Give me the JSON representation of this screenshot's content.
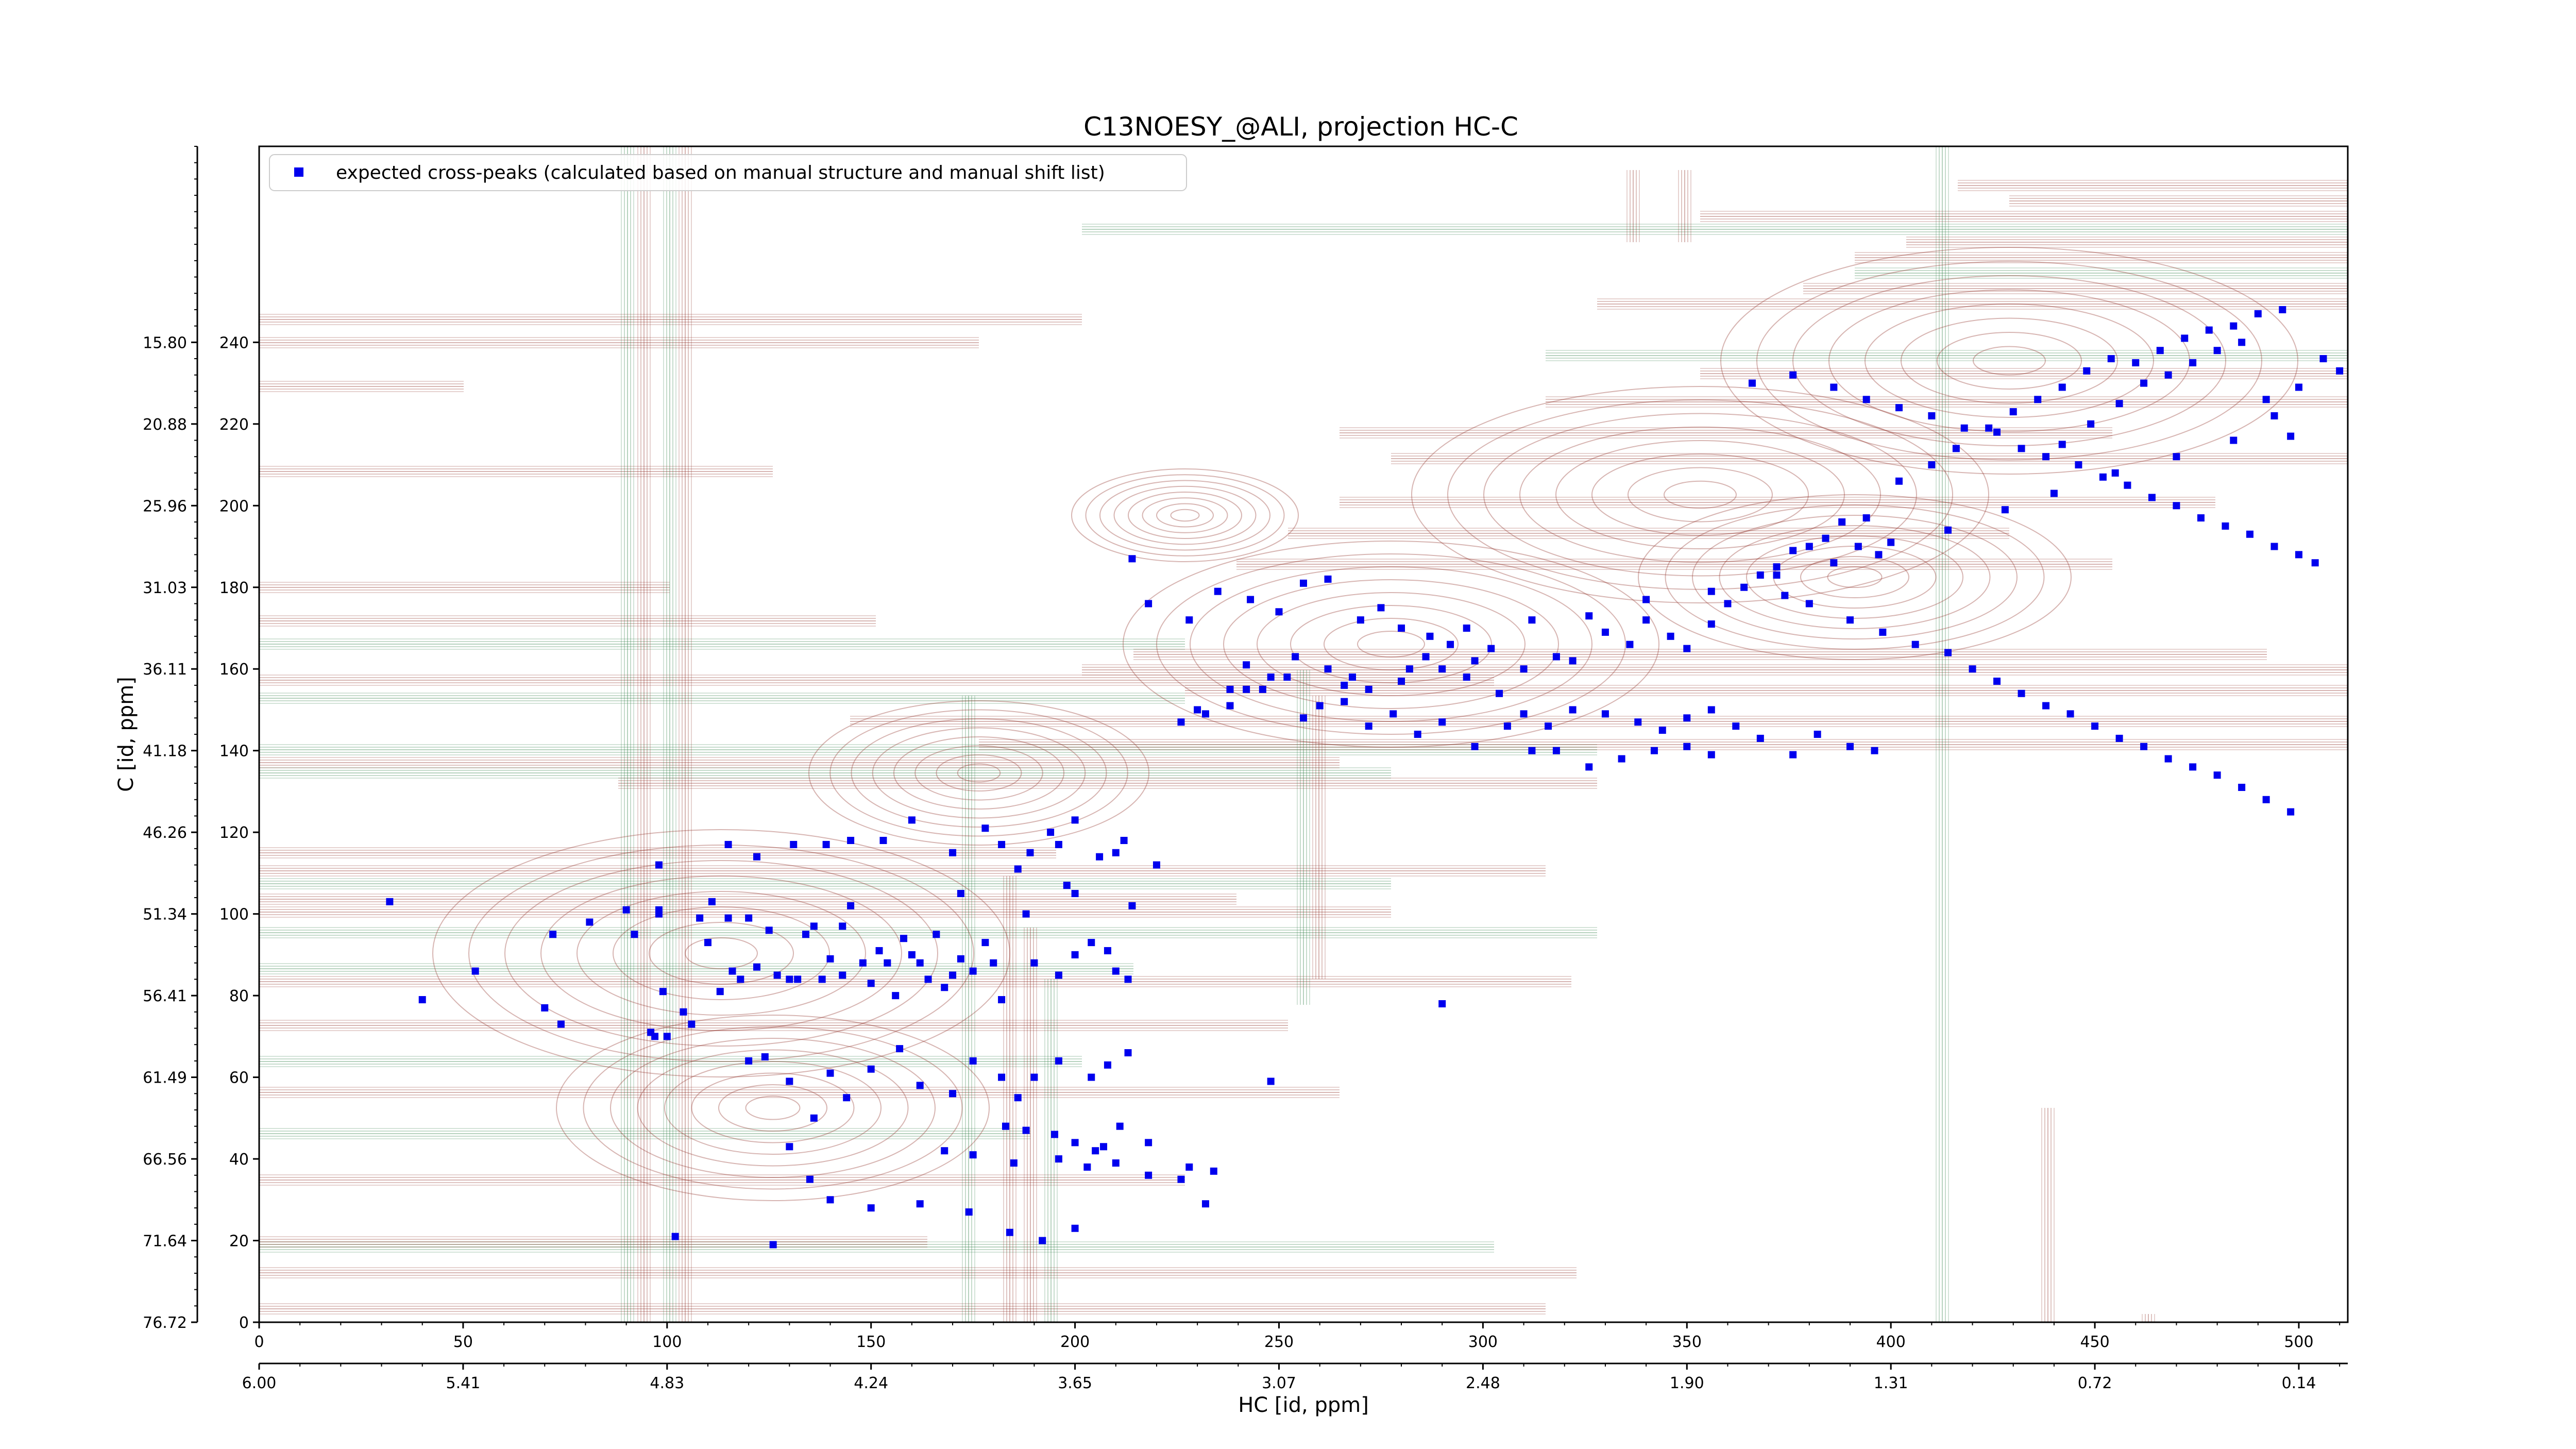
{
  "chart_data": {
    "type": "scatter",
    "title": "C13NOESY_@ALI, projection HC-C",
    "xlabel": "HC [id, ppm]",
    "ylabel": "C [id, ppm]",
    "xlim": [
      0,
      512
    ],
    "ylim": [
      0,
      288
    ],
    "x_ticks_index": [
      "0",
      "50",
      "100",
      "150",
      "200",
      "250",
      "300",
      "350",
      "400",
      "450",
      "500"
    ],
    "x_ticks_ppm": [
      "6.00",
      "5.41",
      "4.83",
      "4.24",
      "3.65",
      "3.07",
      "2.48",
      "1.90",
      "1.31",
      "0.72",
      "0.14"
    ],
    "y_ticks_index": [
      "0",
      "20",
      "40",
      "60",
      "80",
      "100",
      "120",
      "140",
      "160",
      "180",
      "200",
      "220",
      "240"
    ],
    "y_ticks_ppm": [
      "76.72",
      "71.64",
      "66.56",
      "61.49",
      "56.41",
      "51.34",
      "46.26",
      "41.18",
      "36.11",
      "31.03",
      "25.96",
      "20.88",
      "15.80"
    ],
    "legend_position": "top-left",
    "contour_colors": {
      "positive": "#8b2a22",
      "negative": "#2e7d46"
    },
    "series": [
      {
        "name": "expected cross-peaks (calculated based on manual structure and manual shift list)",
        "color": "#0000ee",
        "marker": "square",
        "points": [
          [
            32,
            103
          ],
          [
            40,
            79
          ],
          [
            53,
            86
          ],
          [
            72,
            95
          ],
          [
            70,
            77
          ],
          [
            74,
            73
          ],
          [
            81,
            98
          ],
          [
            90,
            101
          ],
          [
            92,
            95
          ],
          [
            98,
            100
          ],
          [
            98,
            112
          ],
          [
            98,
            101
          ],
          [
            96,
            71
          ],
          [
            97,
            70
          ],
          [
            99,
            81
          ],
          [
            100,
            70
          ],
          [
            104,
            76
          ],
          [
            106,
            73
          ],
          [
            108,
            99
          ],
          [
            111,
            103
          ],
          [
            110,
            93
          ],
          [
            113,
            81
          ],
          [
            115,
            99
          ],
          [
            116,
            86
          ],
          [
            118,
            84
          ],
          [
            120,
            99
          ],
          [
            122,
            87
          ],
          [
            120,
            64
          ],
          [
            125,
            96
          ],
          [
            127,
            85
          ],
          [
            130,
            84
          ],
          [
            132,
            84
          ],
          [
            134,
            95
          ],
          [
            136,
            97
          ],
          [
            138,
            84
          ],
          [
            140,
            89
          ],
          [
            143,
            85
          ],
          [
            143,
            97
          ],
          [
            145,
            102
          ],
          [
            148,
            88
          ],
          [
            150,
            83
          ],
          [
            152,
            91
          ],
          [
            154,
            88
          ],
          [
            156,
            80
          ],
          [
            158,
            94
          ],
          [
            160,
            90
          ],
          [
            162,
            88
          ],
          [
            164,
            84
          ],
          [
            166,
            95
          ],
          [
            168,
            82
          ],
          [
            170,
            85
          ],
          [
            172,
            89
          ],
          [
            175,
            86
          ],
          [
            178,
            93
          ],
          [
            180,
            88
          ],
          [
            182,
            79
          ],
          [
            188,
            100
          ],
          [
            190,
            88
          ],
          [
            196,
            85
          ],
          [
            200,
            90
          ],
          [
            204,
            93
          ],
          [
            208,
            91
          ],
          [
            210,
            86
          ],
          [
            213,
            84
          ],
          [
            115,
            117
          ],
          [
            122,
            114
          ],
          [
            131,
            117
          ],
          [
            139,
            117
          ],
          [
            145,
            118
          ],
          [
            153,
            118
          ],
          [
            160,
            123
          ],
          [
            170,
            115
          ],
          [
            178,
            121
          ],
          [
            182,
            117
          ],
          [
            189,
            115
          ],
          [
            194,
            120
          ],
          [
            196,
            117
          ],
          [
            200,
            123
          ],
          [
            198,
            107
          ],
          [
            186,
            111
          ],
          [
            172,
            105
          ],
          [
            200,
            105
          ],
          [
            206,
            114
          ],
          [
            210,
            115
          ],
          [
            212,
            118
          ],
          [
            220,
            112
          ],
          [
            214,
            102
          ],
          [
            124,
            65
          ],
          [
            130,
            59
          ],
          [
            140,
            61
          ],
          [
            136,
            50
          ],
          [
            144,
            55
          ],
          [
            150,
            62
          ],
          [
            157,
            67
          ],
          [
            162,
            58
          ],
          [
            170,
            56
          ],
          [
            175,
            64
          ],
          [
            182,
            60
          ],
          [
            186,
            55
          ],
          [
            190,
            60
          ],
          [
            196,
            64
          ],
          [
            204,
            60
          ],
          [
            208,
            63
          ],
          [
            213,
            66
          ],
          [
            183,
            48
          ],
          [
            188,
            47
          ],
          [
            195,
            46
          ],
          [
            200,
            44
          ],
          [
            207,
            43
          ],
          [
            211,
            48
          ],
          [
            218,
            44
          ],
          [
            228,
            38
          ],
          [
            234,
            37
          ],
          [
            168,
            42
          ],
          [
            175,
            41
          ],
          [
            185,
            39
          ],
          [
            196,
            40
          ],
          [
            203,
            38
          ],
          [
            210,
            39
          ],
          [
            218,
            36
          ],
          [
            226,
            35
          ],
          [
            232,
            29
          ],
          [
            205,
            42
          ],
          [
            130,
            43
          ],
          [
            135,
            35
          ],
          [
            140,
            30
          ],
          [
            150,
            28
          ],
          [
            162,
            29
          ],
          [
            174,
            27
          ],
          [
            184,
            22
          ],
          [
            192,
            20
          ],
          [
            200,
            23
          ],
          [
            126,
            19
          ],
          [
            102,
            21
          ],
          [
            248,
            59
          ],
          [
            290,
            78
          ],
          [
            214,
            187
          ],
          [
            218,
            176
          ],
          [
            228,
            172
          ],
          [
            235,
            179
          ],
          [
            243,
            177
          ],
          [
            250,
            174
          ],
          [
            256,
            181
          ],
          [
            262,
            182
          ],
          [
            270,
            172
          ],
          [
            275,
            175
          ],
          [
            280,
            170
          ],
          [
            287,
            168
          ],
          [
            292,
            166
          ],
          [
            298,
            162
          ],
          [
            302,
            165
          ],
          [
            310,
            160
          ],
          [
            318,
            163
          ],
          [
            322,
            162
          ],
          [
            330,
            169
          ],
          [
            336,
            166
          ],
          [
            340,
            172
          ],
          [
            346,
            168
          ],
          [
            350,
            165
          ],
          [
            356,
            171
          ],
          [
            360,
            176
          ],
          [
            364,
            180
          ],
          [
            368,
            183
          ],
          [
            372,
            185
          ],
          [
            376,
            189
          ],
          [
            380,
            190
          ],
          [
            384,
            192
          ],
          [
            388,
            196
          ],
          [
            392,
            190
          ],
          [
            397,
            188
          ],
          [
            230,
            150
          ],
          [
            238,
            155
          ],
          [
            242,
            161
          ],
          [
            248,
            158
          ],
          [
            254,
            163
          ],
          [
            262,
            160
          ],
          [
            268,
            158
          ],
          [
            272,
            155
          ],
          [
            280,
            157
          ],
          [
            286,
            163
          ],
          [
            290,
            160
          ],
          [
            296,
            158
          ],
          [
            304,
            154
          ],
          [
            310,
            149
          ],
          [
            316,
            146
          ],
          [
            322,
            150
          ],
          [
            330,
            149
          ],
          [
            338,
            147
          ],
          [
            344,
            145
          ],
          [
            350,
            148
          ],
          [
            356,
            150
          ],
          [
            226,
            147
          ],
          [
            232,
            149
          ],
          [
            238,
            151
          ],
          [
            246,
            155
          ],
          [
            252,
            158
          ],
          [
            260,
            151
          ],
          [
            266,
            152
          ],
          [
            272,
            146
          ],
          [
            278,
            149
          ],
          [
            284,
            144
          ],
          [
            290,
            147
          ],
          [
            298,
            141
          ],
          [
            306,
            146
          ],
          [
            312,
            140
          ],
          [
            318,
            140
          ],
          [
            326,
            136
          ],
          [
            334,
            138
          ],
          [
            342,
            140
          ],
          [
            350,
            141
          ],
          [
            356,
            139
          ],
          [
            362,
            146
          ],
          [
            368,
            143
          ],
          [
            376,
            139
          ],
          [
            382,
            144
          ],
          [
            390,
            141
          ],
          [
            396,
            140
          ],
          [
            242,
            155
          ],
          [
            256,
            148
          ],
          [
            266,
            156
          ],
          [
            282,
            160
          ],
          [
            296,
            170
          ],
          [
            312,
            172
          ],
          [
            326,
            173
          ],
          [
            340,
            177
          ],
          [
            356,
            179
          ],
          [
            372,
            183
          ],
          [
            386,
            186
          ],
          [
            400,
            191
          ],
          [
            414,
            194
          ],
          [
            428,
            199
          ],
          [
            440,
            203
          ],
          [
            455,
            208
          ],
          [
            470,
            212
          ],
          [
            484,
            216
          ],
          [
            494,
            222
          ],
          [
            500,
            229
          ],
          [
            394,
            197
          ],
          [
            402,
            206
          ],
          [
            410,
            210
          ],
          [
            416,
            214
          ],
          [
            424,
            219
          ],
          [
            430,
            223
          ],
          [
            436,
            226
          ],
          [
            442,
            229
          ],
          [
            448,
            233
          ],
          [
            454,
            236
          ],
          [
            460,
            235
          ],
          [
            466,
            238
          ],
          [
            472,
            241
          ],
          [
            478,
            243
          ],
          [
            484,
            244
          ],
          [
            490,
            247
          ],
          [
            496,
            248
          ],
          [
            506,
            236
          ],
          [
            510,
            233
          ],
          [
            366,
            230
          ],
          [
            376,
            232
          ],
          [
            386,
            229
          ],
          [
            394,
            226
          ],
          [
            402,
            224
          ],
          [
            410,
            222
          ],
          [
            418,
            219
          ],
          [
            426,
            218
          ],
          [
            432,
            214
          ],
          [
            438,
            212
          ],
          [
            446,
            210
          ],
          [
            452,
            207
          ],
          [
            458,
            205
          ],
          [
            464,
            202
          ],
          [
            470,
            200
          ],
          [
            476,
            197
          ],
          [
            482,
            195
          ],
          [
            488,
            193
          ],
          [
            494,
            190
          ],
          [
            500,
            188
          ],
          [
            504,
            186
          ],
          [
            442,
            215
          ],
          [
            449,
            220
          ],
          [
            456,
            225
          ],
          [
            462,
            230
          ],
          [
            468,
            232
          ],
          [
            474,
            235
          ],
          [
            480,
            238
          ],
          [
            486,
            240
          ],
          [
            492,
            226
          ],
          [
            498,
            217
          ],
          [
            374,
            178
          ],
          [
            380,
            176
          ],
          [
            390,
            172
          ],
          [
            398,
            169
          ],
          [
            406,
            166
          ],
          [
            414,
            164
          ],
          [
            420,
            160
          ],
          [
            426,
            157
          ],
          [
            432,
            154
          ],
          [
            438,
            151
          ],
          [
            444,
            149
          ],
          [
            450,
            146
          ],
          [
            456,
            143
          ],
          [
            462,
            141
          ],
          [
            468,
            138
          ],
          [
            474,
            136
          ],
          [
            480,
            134
          ],
          [
            486,
            131
          ],
          [
            492,
            128
          ],
          [
            498,
            125
          ]
        ]
      }
    ]
  }
}
